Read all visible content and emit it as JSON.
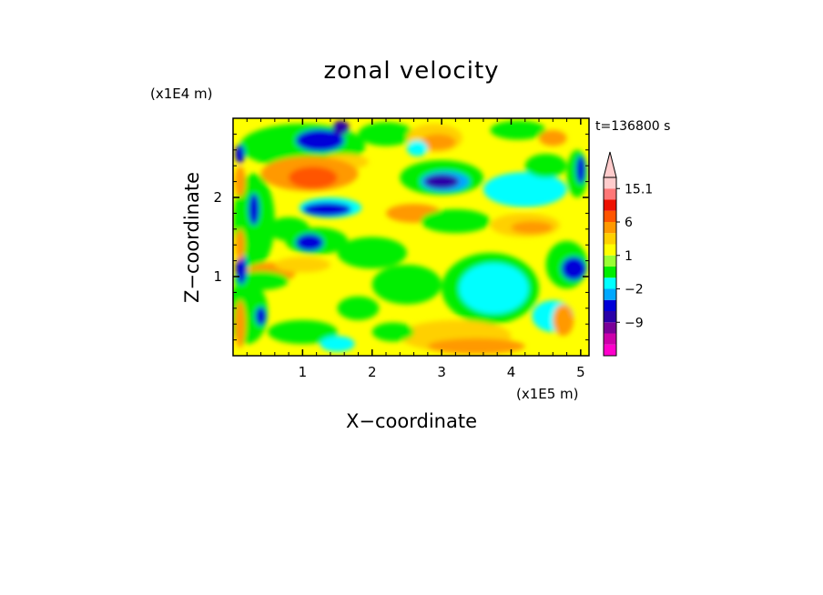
{
  "chart_data": {
    "type": "heatmap",
    "title": "zonal velocity",
    "xlabel": "X−coordinate",
    "ylabel": "Z−coordinate",
    "x_scale_label": "(x1E5 m)",
    "y_scale_label": "(x1E4 m)",
    "time_label": "t=136800 s",
    "x_ticks": [
      "1",
      "2",
      "3",
      "4",
      "5"
    ],
    "x_tick_values": [
      1,
      2,
      3,
      4,
      5
    ],
    "y_ticks": [
      "1",
      "2"
    ],
    "y_tick_values": [
      1,
      2
    ],
    "xlim": [
      0,
      5.12
    ],
    "ylim": [
      0,
      3.0
    ],
    "colorbar": {
      "levels": [
        -15,
        -12,
        -9,
        -6,
        -4,
        -2,
        -1,
        0,
        1,
        2,
        4,
        6,
        9,
        12,
        15.1
      ],
      "colors": [
        "#ff00cc",
        "#cc00aa",
        "#7a0099",
        "#2a00a8",
        "#0000d8",
        "#00a8ff",
        "#00ffff",
        "#00ee00",
        "#99ff33",
        "#ffff00",
        "#ffd000",
        "#ff9900",
        "#ff5500",
        "#ee1100",
        "#ff7777",
        "#ffcccc"
      ],
      "labels": [
        "15.1",
        "6",
        "1",
        "−2",
        "−9"
      ],
      "label_values": [
        15.1,
        6,
        1,
        -2,
        -9
      ]
    },
    "field": {
      "base_color": "#ffff00",
      "blobs": [
        {
          "x": 0.3,
          "z": 1.7,
          "rx": 0.3,
          "rz": 0.6,
          "c": "#00ee00"
        },
        {
          "x": 1.0,
          "z": 2.65,
          "rx": 0.9,
          "rz": 0.28,
          "c": "#00ee00"
        },
        {
          "x": 1.25,
          "z": 2.72,
          "rx": 0.35,
          "rz": 0.14,
          "c": "#0000d8"
        },
        {
          "x": 1.55,
          "z": 2.88,
          "rx": 0.12,
          "rz": 0.09,
          "c": "#2a00a8"
        },
        {
          "x": 1.6,
          "z": 2.45,
          "rx": 0.35,
          "rz": 0.1,
          "c": "#ffd000"
        },
        {
          "x": 1.1,
          "z": 2.3,
          "rx": 0.7,
          "rz": 0.22,
          "c": "#ff9900"
        },
        {
          "x": 1.15,
          "z": 2.25,
          "rx": 0.35,
          "rz": 0.14,
          "c": "#ff5500"
        },
        {
          "x": 1.4,
          "z": 1.87,
          "rx": 0.45,
          "rz": 0.13,
          "c": "#00ffff"
        },
        {
          "x": 1.35,
          "z": 1.85,
          "rx": 0.35,
          "rz": 0.09,
          "c": "#0000d8"
        },
        {
          "x": 0.8,
          "z": 1.6,
          "rx": 0.3,
          "rz": 0.15,
          "c": "#00ee00"
        },
        {
          "x": 1.2,
          "z": 1.45,
          "rx": 0.45,
          "rz": 0.17,
          "c": "#00ee00"
        },
        {
          "x": 1.1,
          "z": 1.43,
          "rx": 0.2,
          "rz": 0.11,
          "c": "#0000d8"
        },
        {
          "x": 0.55,
          "z": 1.05,
          "rx": 0.35,
          "rz": 0.13,
          "c": "#ff9900"
        },
        {
          "x": 1.0,
          "z": 1.15,
          "rx": 0.4,
          "rz": 0.1,
          "c": "#ffd000"
        },
        {
          "x": 0.4,
          "z": 0.95,
          "rx": 0.4,
          "rz": 0.12,
          "c": "#00ee00"
        },
        {
          "x": 0.2,
          "z": 0.55,
          "rx": 0.3,
          "rz": 0.4,
          "c": "#00ee00"
        },
        {
          "x": 1.0,
          "z": 0.3,
          "rx": 0.5,
          "rz": 0.15,
          "c": "#00ee00"
        },
        {
          "x": 1.5,
          "z": 0.15,
          "rx": 0.25,
          "rz": 0.1,
          "c": "#00ffff"
        },
        {
          "x": 1.8,
          "z": 0.6,
          "rx": 0.3,
          "rz": 0.15,
          "c": "#00ee00"
        },
        {
          "x": 2.2,
          "z": 2.8,
          "rx": 0.4,
          "rz": 0.15,
          "c": "#00ee00"
        },
        {
          "x": 2.9,
          "z": 2.75,
          "rx": 0.4,
          "rz": 0.18,
          "c": "#ffd000"
        },
        {
          "x": 2.95,
          "z": 2.7,
          "rx": 0.25,
          "rz": 0.1,
          "c": "#ff9900"
        },
        {
          "x": 3.0,
          "z": 2.25,
          "rx": 0.6,
          "rz": 0.22,
          "c": "#00ee00"
        },
        {
          "x": 3.05,
          "z": 2.2,
          "rx": 0.35,
          "rz": 0.13,
          "c": "#00a8ff"
        },
        {
          "x": 3.0,
          "z": 2.2,
          "rx": 0.25,
          "rz": 0.09,
          "c": "#2a00a8"
        },
        {
          "x": 2.6,
          "z": 1.8,
          "rx": 0.4,
          "rz": 0.12,
          "c": "#ff9900"
        },
        {
          "x": 3.2,
          "z": 1.7,
          "rx": 0.5,
          "rz": 0.15,
          "c": "#00ee00"
        },
        {
          "x": 2.0,
          "z": 1.3,
          "rx": 0.5,
          "rz": 0.2,
          "c": "#00ee00"
        },
        {
          "x": 2.5,
          "z": 0.9,
          "rx": 0.5,
          "rz": 0.25,
          "c": "#00ee00"
        },
        {
          "x": 3.7,
          "z": 0.85,
          "rx": 0.7,
          "rz": 0.45,
          "c": "#00ee00"
        },
        {
          "x": 3.75,
          "z": 0.85,
          "rx": 0.5,
          "rz": 0.32,
          "c": "#00ffff"
        },
        {
          "x": 3.2,
          "z": 0.25,
          "rx": 0.8,
          "rz": 0.2,
          "c": "#ffd000"
        },
        {
          "x": 3.5,
          "z": 0.12,
          "rx": 0.7,
          "rz": 0.1,
          "c": "#ff9900"
        },
        {
          "x": 4.1,
          "z": 2.85,
          "rx": 0.4,
          "rz": 0.12,
          "c": "#00ee00"
        },
        {
          "x": 4.2,
          "z": 2.1,
          "rx": 0.6,
          "rz": 0.22,
          "c": "#00ffff"
        },
        {
          "x": 4.5,
          "z": 2.4,
          "rx": 0.3,
          "rz": 0.15,
          "c": "#00ee00"
        },
        {
          "x": 4.2,
          "z": 1.65,
          "rx": 0.5,
          "rz": 0.15,
          "c": "#ffd000"
        },
        {
          "x": 4.3,
          "z": 1.62,
          "rx": 0.3,
          "rz": 0.08,
          "c": "#ff9900"
        },
        {
          "x": 4.8,
          "z": 1.15,
          "rx": 0.3,
          "rz": 0.3,
          "c": "#00ee00"
        },
        {
          "x": 4.9,
          "z": 1.1,
          "rx": 0.18,
          "rz": 0.15,
          "c": "#0000d8"
        },
        {
          "x": 4.95,
          "z": 2.3,
          "rx": 0.15,
          "rz": 0.3,
          "c": "#00ee00"
        },
        {
          "x": 5.0,
          "z": 2.35,
          "rx": 0.07,
          "rz": 0.18,
          "c": "#0000d8"
        },
        {
          "x": 4.6,
          "z": 0.5,
          "rx": 0.3,
          "rz": 0.2,
          "c": "#00ffff"
        },
        {
          "x": 4.75,
          "z": 0.45,
          "rx": 0.15,
          "rz": 0.2,
          "c": "#ff9900"
        },
        {
          "x": 0.12,
          "z": 1.1,
          "rx": 0.08,
          "rz": 0.2,
          "c": "#0000d8"
        },
        {
          "x": 0.1,
          "z": 1.4,
          "rx": 0.07,
          "rz": 0.2,
          "c": "#ff9900"
        },
        {
          "x": 0.1,
          "z": 2.2,
          "rx": 0.08,
          "rz": 0.2,
          "c": "#ff9900"
        },
        {
          "x": 0.3,
          "z": 1.85,
          "rx": 0.08,
          "rz": 0.2,
          "c": "#0000d8"
        },
        {
          "x": 0.1,
          "z": 0.4,
          "rx": 0.08,
          "rz": 0.3,
          "c": "#ff9900"
        },
        {
          "x": 0.4,
          "z": 0.5,
          "rx": 0.08,
          "rz": 0.12,
          "c": "#0000d8"
        },
        {
          "x": 0.1,
          "z": 2.55,
          "rx": 0.07,
          "rz": 0.12,
          "c": "#0000d8"
        },
        {
          "x": 2.65,
          "z": 2.62,
          "rx": 0.15,
          "rz": 0.1,
          "c": "#00ffff"
        },
        {
          "x": 2.3,
          "z": 0.3,
          "rx": 0.3,
          "rz": 0.12,
          "c": "#00ee00"
        },
        {
          "x": 4.6,
          "z": 2.75,
          "rx": 0.2,
          "rz": 0.1,
          "c": "#ff9900"
        }
      ]
    }
  }
}
